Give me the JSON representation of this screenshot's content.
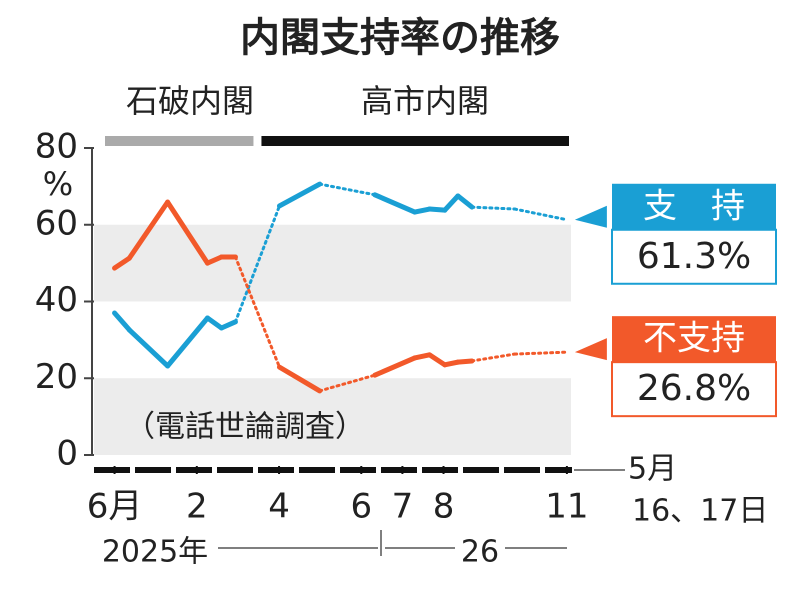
{
  "chart_data": {
    "type": "line",
    "title": "内閣支持率の推移",
    "y_unit": "%",
    "note": "（電話世論調査）",
    "periods": [
      {
        "label": "石破内閣",
        "color": "#aaaaaa"
      },
      {
        "label": "高市内閣",
        "color": "#111111"
      }
    ],
    "x": [
      0,
      0.36,
      1.29,
      2.26,
      2.6,
      2.94,
      4.01,
      4.99,
      6.33,
      7.3,
      7.66,
      8.03,
      8.35,
      8.69,
      9.73,
      11
    ],
    "series": [
      {
        "name": "支　持",
        "color": "#1a9fd4",
        "values": [
          37.0,
          32.6,
          23.2,
          35.7,
          33.1,
          34.7,
          64.9,
          70.6,
          67.8,
          63.3,
          64.1,
          63.8,
          67.5,
          64.6,
          64.1,
          61.3
        ],
        "value_labels": [
          null,
          null,
          null,
          null,
          null,
          null,
          null,
          null,
          null,
          null,
          null,
          null,
          null,
          null,
          null,
          "61.3%"
        ]
      },
      {
        "name": "不支持",
        "color": "#f2592a",
        "values": [
          48.7,
          51.3,
          65.9,
          50.0,
          51.6,
          51.6,
          22.9,
          16.7,
          20.8,
          25.3,
          26.1,
          23.5,
          24.2,
          24.5,
          26.3,
          26.8
        ],
        "value_labels": [
          null,
          null,
          null,
          null,
          null,
          null,
          null,
          null,
          null,
          null,
          null,
          null,
          null,
          null,
          null,
          "26.8%"
        ]
      }
    ],
    "xlim": [
      -0.5,
      11.1
    ],
    "xticks": [
      {
        "value": 0,
        "label": "6月"
      },
      2,
      4,
      6,
      7,
      8,
      11
    ],
    "x_tick_labels_note": null,
    "x_end_label": [
      "5月",
      "16、17日"
    ],
    "year_labels": [
      "2025年",
      "26"
    ],
    "ylim": [
      0,
      80
    ],
    "yticks": [
      0,
      20,
      40,
      60,
      80
    ],
    "shaded_bands": [
      [
        0,
        20
      ],
      [
        40,
        60
      ]
    ],
    "band_color": "#ececec"
  }
}
